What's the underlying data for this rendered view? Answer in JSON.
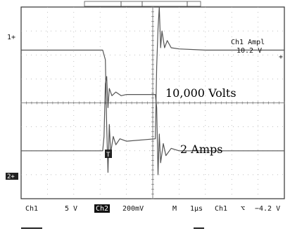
{
  "chart_data": {
    "type": "line",
    "title": "",
    "xlabel": "",
    "ylabel": "",
    "time_per_division_us": 1,
    "x_divisions": 10,
    "y_divisions": 8,
    "grid": true,
    "series": [
      {
        "channel_label": "1",
        "scale_text": "5 V",
        "annotation": "10,000 Volts",
        "x": [
          0,
          3.1,
          3.2,
          3.25,
          3.3,
          3.35,
          3.4,
          3.5,
          3.6,
          3.75,
          4,
          5.1,
          5.15,
          5.2,
          5.25,
          5.3,
          5.35,
          5.45,
          5.55,
          5.7,
          6,
          7,
          8,
          9,
          10
        ],
        "y": [
          2.2,
          2.2,
          1.8,
          -1.0,
          -2.9,
          -0.9,
          -2.1,
          -1.4,
          -1.75,
          -1.5,
          -1.6,
          -1.5,
          1.5,
          3.1,
          4.0,
          2.3,
          3.0,
          2.3,
          2.6,
          2.3,
          2.25,
          2.2,
          2.2,
          2.2,
          2.2
        ]
      },
      {
        "channel_label": "2",
        "scale_text": "200mV",
        "annotation": "2 Amps",
        "x": [
          0,
          3.1,
          3.15,
          3.2,
          3.25,
          3.3,
          3.35,
          3.45,
          3.6,
          3.8,
          4,
          5.1,
          5.15,
          5.2,
          5.25,
          5.3,
          5.4,
          5.5,
          5.7,
          6,
          8,
          10
        ],
        "y": [
          -2.0,
          -2.0,
          -1.4,
          0.8,
          1.1,
          -0.2,
          0.6,
          0.3,
          0.45,
          0.3,
          0.35,
          0.35,
          -0.2,
          -3.0,
          -1.3,
          -2.5,
          -1.7,
          -2.2,
          -1.9,
          -2.0,
          -2.0,
          -2.0
        ]
      }
    ]
  },
  "readout": {
    "ch1_label": "Ch1",
    "ch1_scale": "5 V",
    "ch2_label": "Ch2",
    "ch2_scale": "200mV",
    "m_label": "M",
    "timebase": "1µs",
    "trigger_source": "Ch1",
    "trigger_slope": "⌥",
    "trigger_level": "−4.2 V"
  },
  "measurement": {
    "title": "Ch1 Ampl",
    "value": "10.2 V"
  },
  "markers": {
    "ch1": "1+",
    "ch2": "2+",
    "trigger_tag": "T"
  },
  "colors": {
    "trace": "#555555",
    "grid": "#aaaaaa",
    "frame": "#333333",
    "readout_bg": "#000000",
    "readout_fg": "#ffffff"
  }
}
